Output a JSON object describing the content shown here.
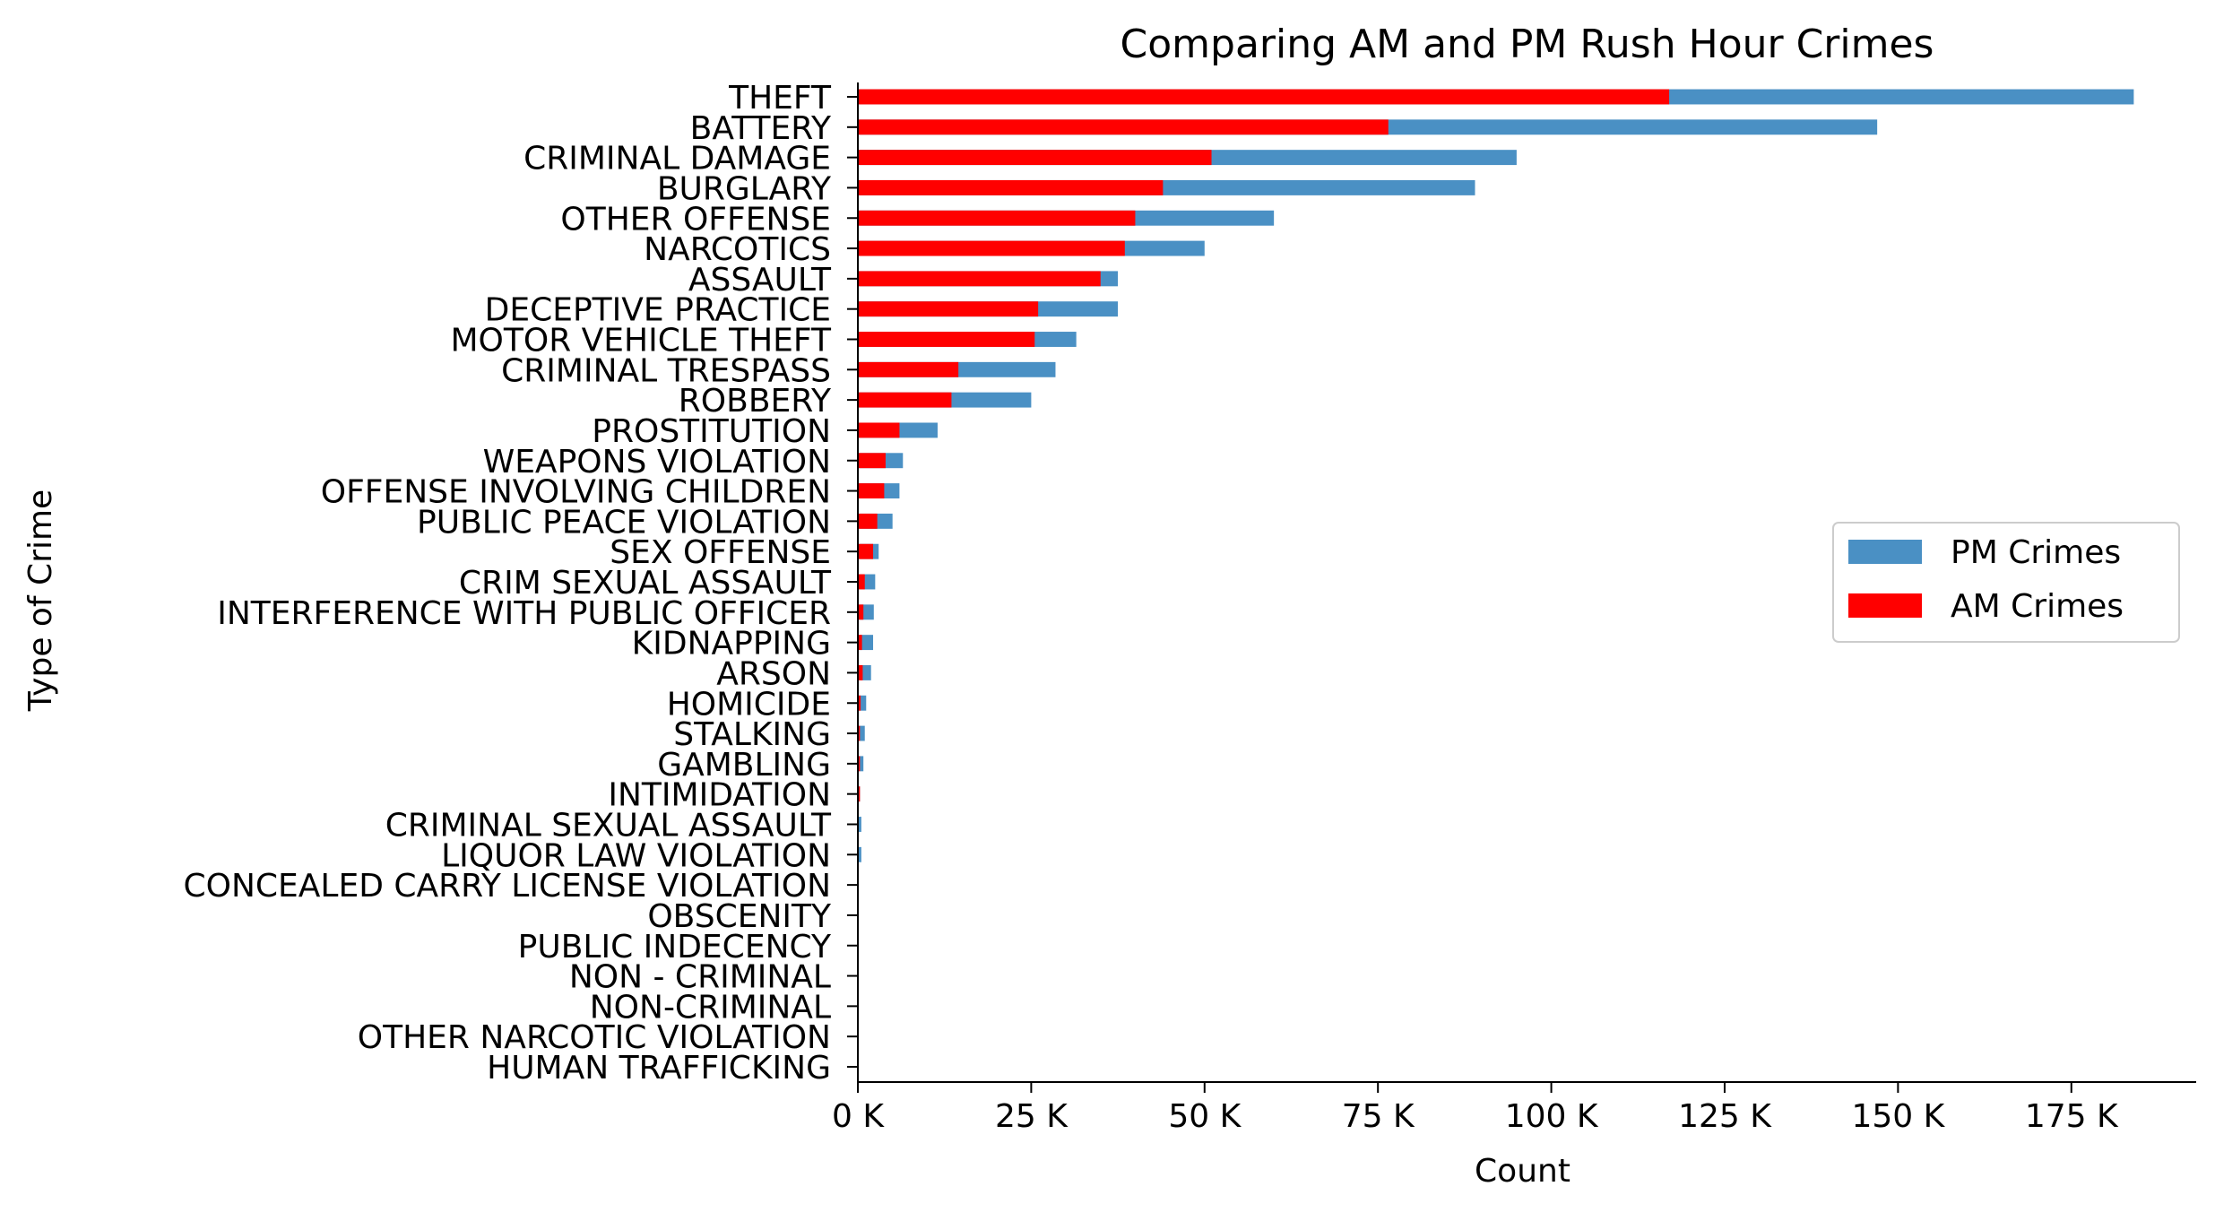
{
  "chart_data": {
    "type": "bar",
    "orientation": "horizontal",
    "stacked": false,
    "overlay": true,
    "title": "Comparing AM and PM  Rush Hour Crimes",
    "xlabel": "Count",
    "ylabel": "Type of Crime",
    "xlim": [
      0,
      193000
    ],
    "x_ticks": [
      0,
      25000,
      50000,
      75000,
      100000,
      125000,
      150000,
      175000
    ],
    "x_tick_labels": [
      "0 K",
      "25 K",
      "50 K",
      "75 K",
      "100 K",
      "125 K",
      "150 K",
      "175 K"
    ],
    "grid": false,
    "legend_position": "center-right",
    "categories": [
      "THEFT",
      "BATTERY",
      "CRIMINAL DAMAGE",
      "BURGLARY",
      "OTHER OFFENSE",
      "NARCOTICS",
      "ASSAULT",
      "DECEPTIVE PRACTICE",
      "MOTOR VEHICLE THEFT",
      "CRIMINAL TRESPASS",
      "ROBBERY",
      "PROSTITUTION",
      "WEAPONS VIOLATION",
      "OFFENSE INVOLVING CHILDREN",
      "PUBLIC PEACE VIOLATION",
      "SEX OFFENSE",
      "CRIM SEXUAL ASSAULT",
      "INTERFERENCE WITH PUBLIC OFFICER",
      "KIDNAPPING",
      "ARSON",
      "HOMICIDE",
      "STALKING",
      "GAMBLING",
      "INTIMIDATION",
      "CRIMINAL SEXUAL ASSAULT",
      "LIQUOR LAW VIOLATION",
      "CONCEALED CARRY LICENSE VIOLATION",
      "OBSCENITY",
      "PUBLIC INDECENCY",
      "NON - CRIMINAL",
      "NON-CRIMINAL",
      "OTHER NARCOTIC VIOLATION",
      "HUMAN TRAFFICKING"
    ],
    "series": [
      {
        "name": "PM Crimes",
        "color": "#4a90c4",
        "values": [
          184000,
          147000,
          95000,
          89000,
          60000,
          50000,
          37500,
          37500,
          31500,
          28500,
          25000,
          11500,
          6500,
          6000,
          5000,
          3000,
          2500,
          2300,
          2200,
          1900,
          1200,
          1000,
          800,
          300,
          500,
          500,
          100,
          50,
          50,
          30,
          30,
          20,
          20
        ]
      },
      {
        "name": "AM Crimes",
        "color": "#ff0000",
        "values": [
          117000,
          76500,
          51000,
          44000,
          40000,
          38500,
          35000,
          26000,
          25500,
          14500,
          13500,
          6000,
          4000,
          3800,
          2800,
          2200,
          1000,
          800,
          600,
          700,
          400,
          300,
          300,
          300,
          100,
          100,
          30,
          20,
          20,
          10,
          10,
          10,
          10
        ]
      }
    ]
  }
}
